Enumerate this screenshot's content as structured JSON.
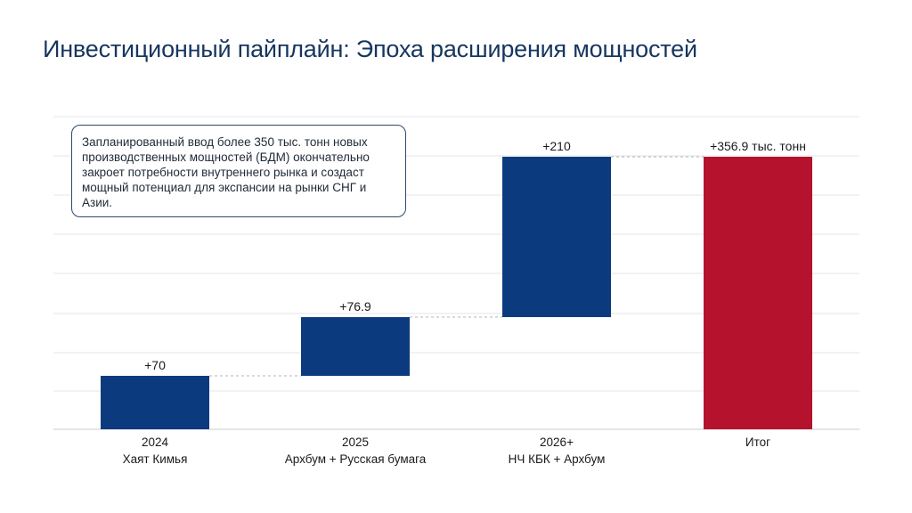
{
  "title": "Инвестиционный пайплайн: Эпоха расширения мощностей",
  "callout": "Запланированный ввод более 350 тыс. тонн новых производственных мощностей (БДМ) окончательно закроет потребности внутреннего рынка и создаст мощный потенциал для экспансии на рынки СНГ и Азии.",
  "colors": {
    "increase": "#0c3a7f",
    "total": "#b5122e",
    "grid": "#e3e6ea",
    "connector": "#b0b4b9"
  },
  "chart_data": {
    "type": "waterfall",
    "title": "",
    "xlabel": "",
    "ylabel": "",
    "ylim": [
      0,
      420
    ],
    "grid": true,
    "categories": [
      {
        "year": "2024",
        "name": "Хаят Кимья"
      },
      {
        "year": "2025",
        "name": "Архбум + Русская бумага"
      },
      {
        "year": "2026+",
        "name": "НЧ КБК + Архбум"
      },
      {
        "year": "Итог",
        "name": ""
      }
    ],
    "values": [
      70,
      76.9,
      210,
      356.9
    ],
    "kinds": [
      "increase",
      "increase",
      "increase",
      "total"
    ],
    "data_labels": [
      "+70",
      "+76.9",
      "+210",
      "+356.9 тыс. тонн"
    ]
  }
}
